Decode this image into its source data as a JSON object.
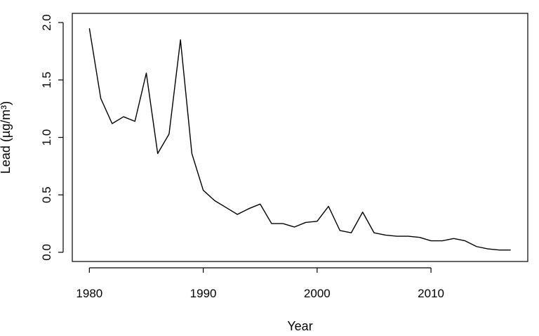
{
  "chart_data": {
    "type": "line",
    "title": "",
    "xlabel": "Year",
    "ylabel": "Lead  (µg/m³)",
    "xlim": [
      1980,
      2017
    ],
    "ylim": [
      0,
      2.0
    ],
    "x_ticks": [
      1980,
      1990,
      2000,
      2010
    ],
    "y_ticks": [
      0.0,
      0.5,
      1.0,
      1.5,
      2.0
    ],
    "x_tick_labels": [
      "1980",
      "1990",
      "2000",
      "2010"
    ],
    "y_tick_labels": [
      "0.0",
      "0.5",
      "1.0",
      "1.5",
      "2.0"
    ],
    "grid": false,
    "legend": "none",
    "series": [
      {
        "color": "#000000",
        "x": [
          1980,
          1981,
          1982,
          1983,
          1984,
          1985,
          1986,
          1987,
          1988,
          1989,
          1990,
          1991,
          1992,
          1993,
          1994,
          1995,
          1996,
          1997,
          1998,
          1999,
          2000,
          2001,
          2002,
          2003,
          2004,
          2005,
          2006,
          2007,
          2008,
          2009,
          2010,
          2011,
          2012,
          2013,
          2014,
          2015,
          2016,
          2017
        ],
        "values": [
          1.95,
          1.34,
          1.12,
          1.18,
          1.14,
          1.56,
          0.86,
          1.03,
          1.85,
          0.86,
          0.54,
          0.45,
          0.39,
          0.33,
          0.38,
          0.42,
          0.25,
          0.25,
          0.22,
          0.26,
          0.27,
          0.4,
          0.19,
          0.17,
          0.35,
          0.17,
          0.15,
          0.14,
          0.14,
          0.13,
          0.1,
          0.1,
          0.12,
          0.1,
          0.05,
          0.03,
          0.02,
          0.02
        ]
      }
    ]
  }
}
